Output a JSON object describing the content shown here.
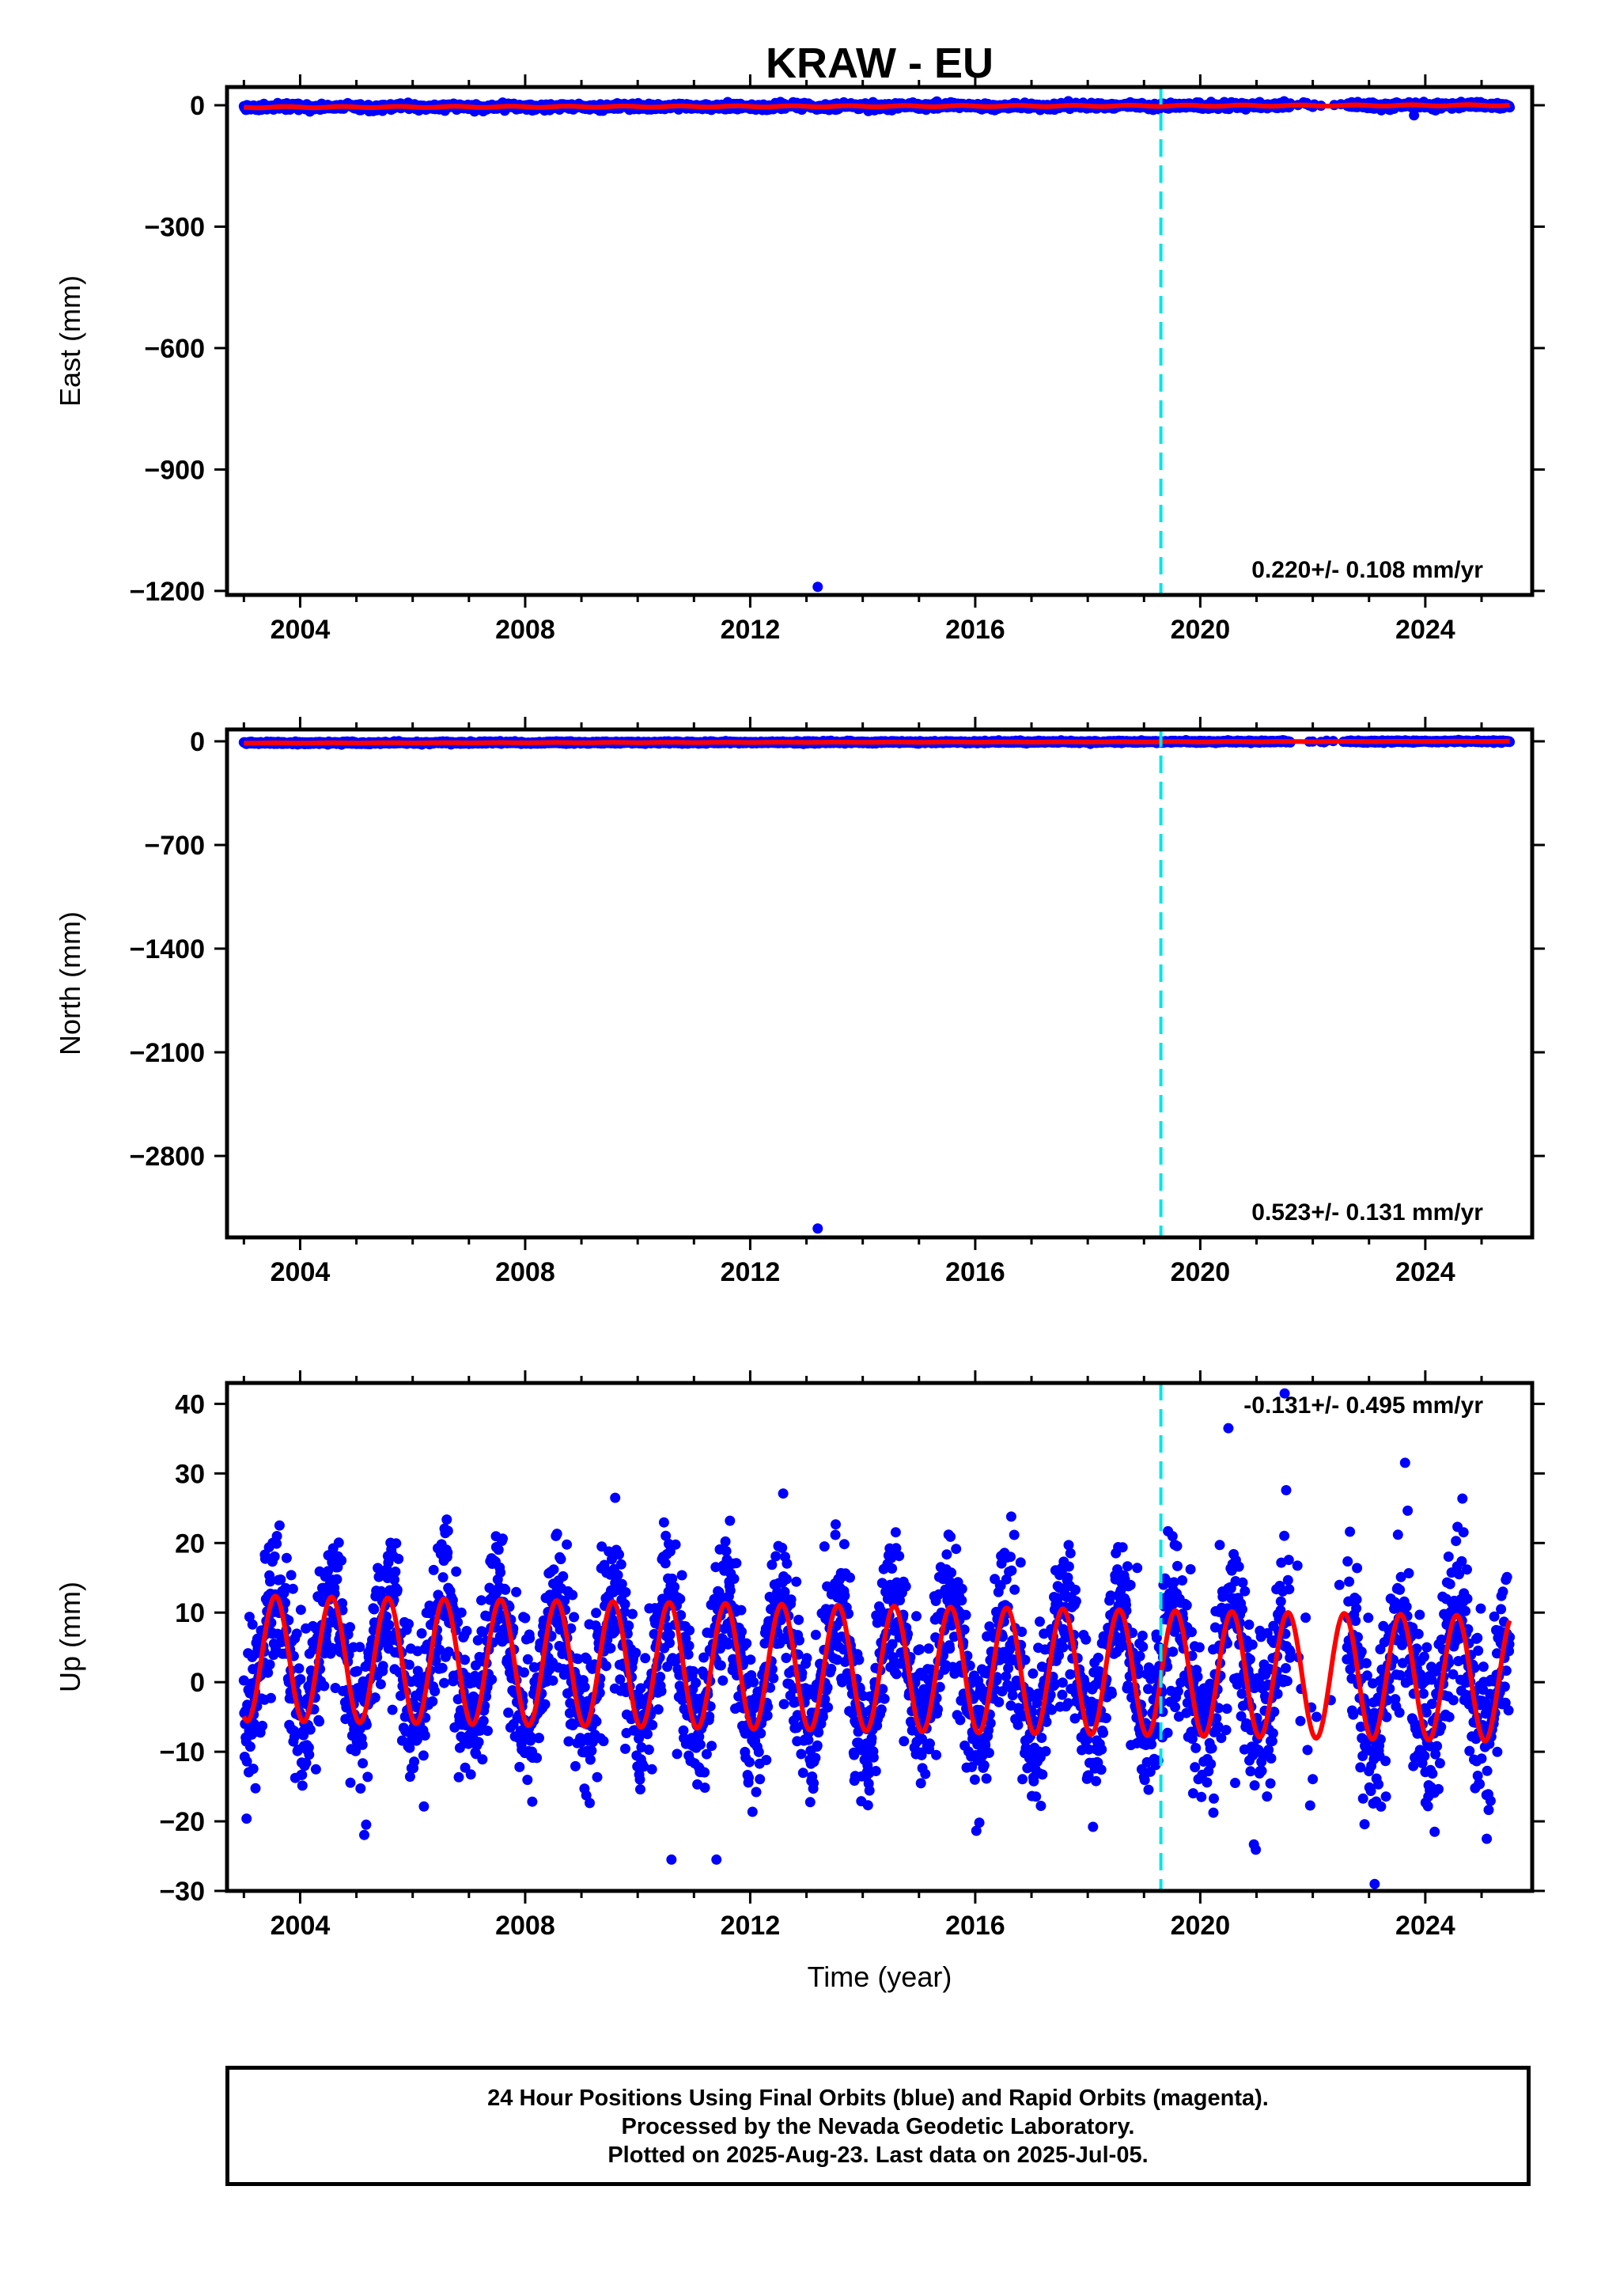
{
  "figure": {
    "title": "KRAW - EU"
  },
  "chart_data": [
    {
      "type": "scatter",
      "panel": "east",
      "ylabel": "East (mm)",
      "xlabel": "",
      "xlim": [
        2002.7,
        2025.9
      ],
      "ylim": [
        -1210,
        45
      ],
      "xticks": [
        2004,
        2008,
        2012,
        2016,
        2020,
        2024
      ],
      "xticklabels": [
        "2004",
        "2008",
        "2012",
        "2016",
        "2020",
        "2024"
      ],
      "yticks": [
        0,
        -300,
        -600,
        -900,
        -1200
      ],
      "yticklabels": [
        "0",
        "−300",
        "−600",
        "−900",
        "−1200"
      ],
      "rate_label": "0.220+/- 0.108 mm/yr",
      "step_line_x": 2019.3,
      "outliers": [
        {
          "x": 2013.2,
          "y": -1190
        },
        {
          "x": 2023.8,
          "y": -25
        }
      ],
      "data_range_x": [
        2003.0,
        2025.5
      ],
      "gap_x": [
        2021.6,
        2022.6
      ],
      "fit": {
        "trend_mm_per_yr": 0.22,
        "offset_mm": -2.5,
        "annual_amp_mm": 1.5,
        "annual_phase": 0.5
      }
    },
    {
      "type": "scatter",
      "panel": "north",
      "ylabel": "North (mm)",
      "xlabel": "",
      "xlim": [
        2002.7,
        2025.9
      ],
      "ylim": [
        -3350,
        80
      ],
      "xticks": [
        2004,
        2008,
        2012,
        2016,
        2020,
        2024
      ],
      "xticklabels": [
        "2004",
        "2008",
        "2012",
        "2016",
        "2020",
        "2024"
      ],
      "yticks": [
        0,
        -700,
        -1400,
        -2100,
        -2800
      ],
      "yticklabels": [
        "0",
        "−700",
        "−1400",
        "−2100",
        "−2800"
      ],
      "rate_label": "0.523+/- 0.131 mm/yr",
      "step_line_x": 2019.3,
      "outliers": [
        {
          "x": 2013.2,
          "y": -3290
        }
      ],
      "data_range_x": [
        2003.0,
        2025.5
      ],
      "gap_x": [
        2021.6,
        2022.6
      ],
      "fit": {
        "trend_mm_per_yr": 0.523,
        "offset_mm": -6.0,
        "annual_amp_mm": 1.0,
        "annual_phase": 0.3
      }
    },
    {
      "type": "scatter",
      "panel": "up",
      "ylabel": "Up (mm)",
      "xlabel": "Time (year)",
      "xlim": [
        2002.7,
        2025.9
      ],
      "ylim": [
        -30,
        43
      ],
      "xticks": [
        2004,
        2008,
        2012,
        2016,
        2020,
        2024
      ],
      "xticklabels": [
        "2004",
        "2008",
        "2012",
        "2016",
        "2020",
        "2024"
      ],
      "yticks": [
        40,
        30,
        20,
        10,
        0,
        -10,
        -20,
        -30
      ],
      "yticklabels": [
        "40",
        "30",
        "20",
        "10",
        "0",
        "−10",
        "−20",
        "−30"
      ],
      "rate_label": "-0.131+/- 0.495 mm/yr",
      "step_line_x": 2019.3,
      "outliers": [
        {
          "x": 2009.6,
          "y": 26.5
        },
        {
          "x": 2020.5,
          "y": 36.5
        },
        {
          "x": 2021.5,
          "y": 41.5
        },
        {
          "x": 2023.1,
          "y": -29
        },
        {
          "x": 2010.6,
          "y": -25.5
        },
        {
          "x": 2011.4,
          "y": -25.5
        }
      ],
      "data_range_x": [
        2003.0,
        2025.5
      ],
      "gap_x": [
        2021.6,
        2022.6
      ],
      "fit": {
        "trend_mm_per_yr": -0.131,
        "offset_mm": 2.0,
        "annual_amp_mm": 9.0,
        "annual_phase": 0.31,
        "noise_sd_mm": 5.5
      }
    }
  ],
  "colors": {
    "data": "#0000ff",
    "fit": "#ff0000",
    "step_line": "#00e5e5",
    "frame": "#000000"
  },
  "footer": {
    "line1": "24 Hour Positions Using Final Orbits (blue) and Rapid Orbits (magenta).",
    "line2": "Processed by the Nevada Geodetic Laboratory.",
    "line3": "Plotted on 2025-Aug-23. Last data on 2025-Jul-05."
  }
}
